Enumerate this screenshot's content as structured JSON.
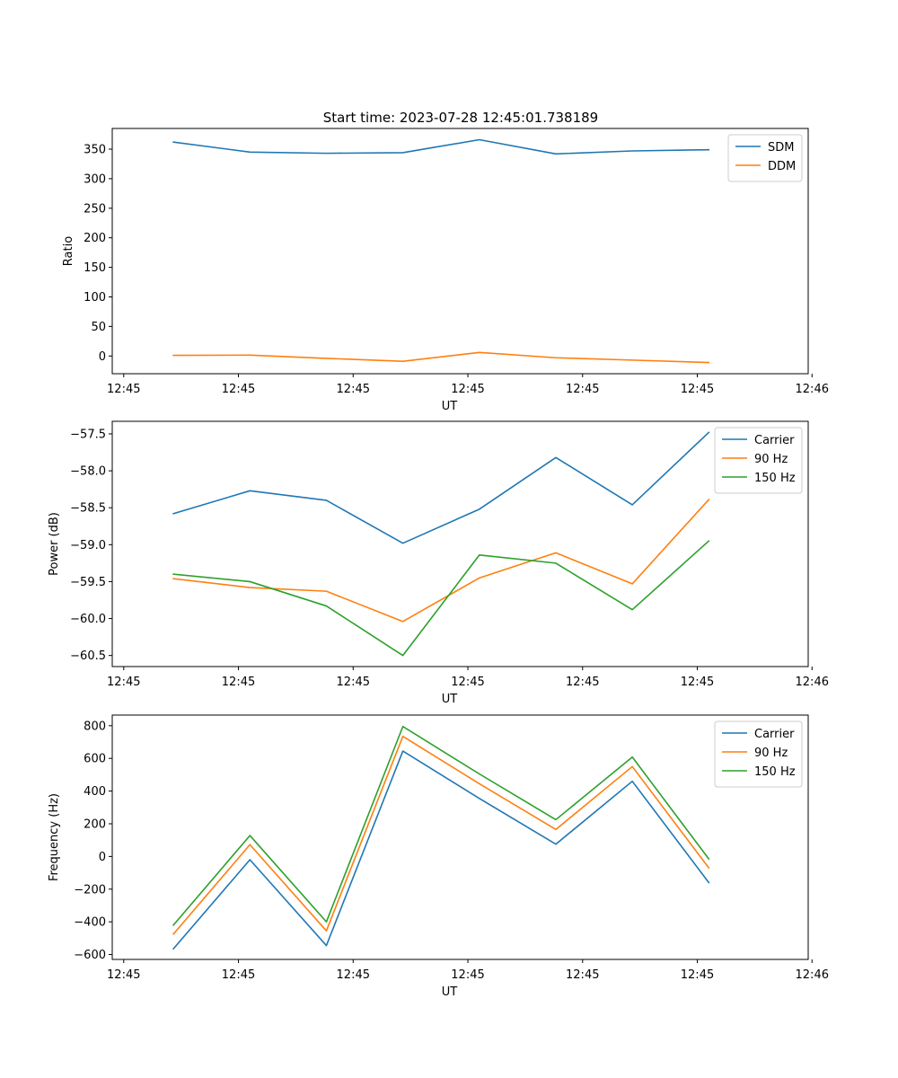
{
  "title": "Start time: 2023-07-28 12:45:01.738189",
  "colors": {
    "blue": "#1f77b4",
    "orange": "#ff7f0e",
    "green": "#2ca02c"
  },
  "chart_data": [
    {
      "type": "line",
      "ylabel": "Ratio",
      "xlabel": "UT",
      "x": [
        1,
        2,
        3,
        4,
        5,
        6,
        7,
        8
      ],
      "xlim": [
        0.2,
        9.3
      ],
      "xticks": [
        0.35,
        1.85,
        3.35,
        4.85,
        6.35,
        7.85,
        9.35
      ],
      "xticklabels": [
        "12:45",
        "12:45",
        "12:45",
        "12:45",
        "12:45",
        "12:45",
        "12:46"
      ],
      "ylim": [
        -30,
        385
      ],
      "yticks": [
        0,
        50,
        100,
        150,
        200,
        250,
        300,
        350
      ],
      "yticklabels": [
        "0",
        "50",
        "100",
        "150",
        "200",
        "250",
        "300",
        "350"
      ],
      "legend_position": "top-right",
      "series": [
        {
          "name": "SDM",
          "color": "#1f77b4",
          "values": [
            362,
            345,
            343,
            344,
            366,
            342,
            347,
            349
          ]
        },
        {
          "name": "DDM",
          "color": "#ff7f0e",
          "values": [
            1,
            1.5,
            -4,
            -9,
            6,
            -3,
            -7,
            -11
          ]
        }
      ]
    },
    {
      "type": "line",
      "ylabel": "Power (dB)",
      "xlabel": "UT",
      "x": [
        1,
        2,
        3,
        4,
        5,
        6,
        7,
        8
      ],
      "xlim": [
        0.2,
        9.3
      ],
      "xticks": [
        0.35,
        1.85,
        3.35,
        4.85,
        6.35,
        7.85,
        9.35
      ],
      "xticklabels": [
        "12:45",
        "12:45",
        "12:45",
        "12:45",
        "12:45",
        "12:45",
        "12:46"
      ],
      "ylim": [
        -60.65,
        -57.33
      ],
      "yticks": [
        -60.5,
        -60.0,
        -59.5,
        -59.0,
        -58.5,
        -58.0,
        -57.5
      ],
      "yticklabels": [
        "−60.5",
        "−60.0",
        "−59.5",
        "−59.0",
        "−58.5",
        "−58.0",
        "−57.5"
      ],
      "legend_position": "top-right",
      "series": [
        {
          "name": "Carrier",
          "color": "#1f77b4",
          "values": [
            -58.58,
            -58.27,
            -58.4,
            -58.98,
            -58.52,
            -57.82,
            -58.46,
            -57.48
          ]
        },
        {
          "name": "90 Hz",
          "color": "#ff7f0e",
          "values": [
            -59.46,
            -59.58,
            -59.63,
            -60.04,
            -59.45,
            -59.11,
            -59.53,
            -58.39
          ]
        },
        {
          "name": "150 Hz",
          "color": "#2ca02c",
          "values": [
            -59.4,
            -59.5,
            -59.83,
            -60.5,
            -59.14,
            -59.25,
            -59.88,
            -58.95
          ]
        }
      ]
    },
    {
      "type": "line",
      "ylabel": "Frequency (Hz)",
      "xlabel": "UT",
      "x": [
        1,
        2,
        3,
        4,
        5,
        6,
        7,
        8
      ],
      "xlim": [
        0.2,
        9.3
      ],
      "xticks": [
        0.35,
        1.85,
        3.35,
        4.85,
        6.35,
        7.85,
        9.35
      ],
      "xticklabels": [
        "12:45",
        "12:45",
        "12:45",
        "12:45",
        "12:45",
        "12:45",
        "12:46"
      ],
      "ylim": [
        -630,
        865
      ],
      "yticks": [
        -600,
        -400,
        -200,
        0,
        200,
        400,
        600,
        800
      ],
      "yticklabels": [
        "−600",
        "−400",
        "−200",
        "0",
        "200",
        "400",
        "600",
        "800"
      ],
      "legend_position": "top-right",
      "series": [
        {
          "name": "Carrier",
          "color": "#1f77b4",
          "values": [
            -565,
            -20,
            -545,
            645,
            355,
            75,
            460,
            -160
          ]
        },
        {
          "name": "90 Hz",
          "color": "#ff7f0e",
          "values": [
            -475,
            72,
            -455,
            735,
            445,
            165,
            550,
            -70
          ]
        },
        {
          "name": "150 Hz",
          "color": "#2ca02c",
          "values": [
            -420,
            128,
            -400,
            795,
            505,
            225,
            608,
            -15
          ]
        }
      ]
    }
  ]
}
